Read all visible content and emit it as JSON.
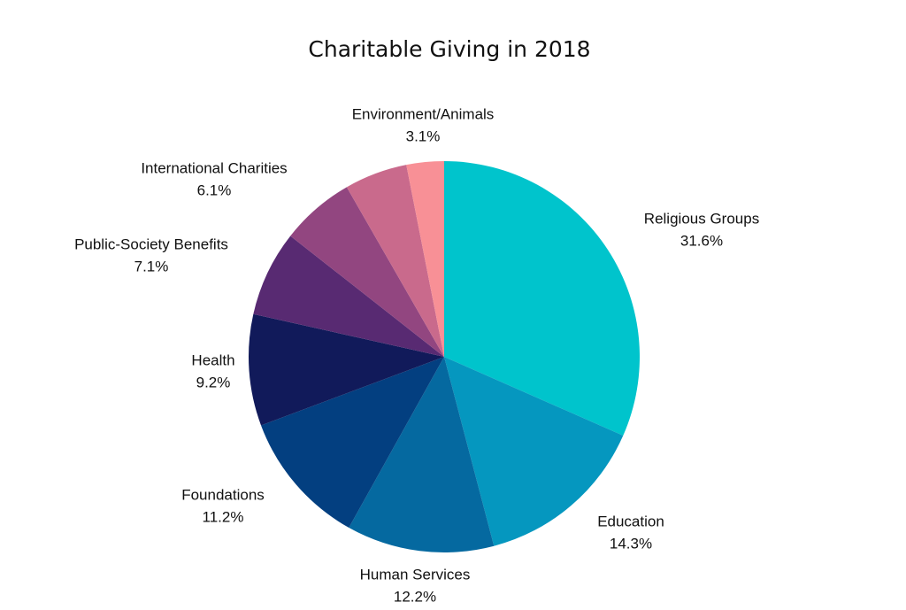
{
  "chart_data": {
    "type": "pie",
    "title": "Charitable Giving in 2018",
    "categories": [
      "Religious Groups",
      "Education",
      "Human Services",
      "Foundations",
      "Health",
      "Public-Society Benefits",
      "International Charities",
      null,
      "Environment/Animals"
    ],
    "values": [
      31.6,
      14.3,
      12.2,
      11.2,
      9.2,
      7.1,
      6.1,
      5.2,
      3.1
    ],
    "value_labels": [
      "31.6%",
      "14.3%",
      "12.2%",
      "11.2%",
      "9.2%",
      "7.1%",
      "6.1%",
      null,
      "3.1%"
    ],
    "colors": [
      "#00c4cc",
      "#0597bf",
      "#0569a0",
      "#033f80",
      "#111a5a",
      "#582a72",
      "#924680",
      "#c96a8c",
      "#f89096"
    ]
  }
}
